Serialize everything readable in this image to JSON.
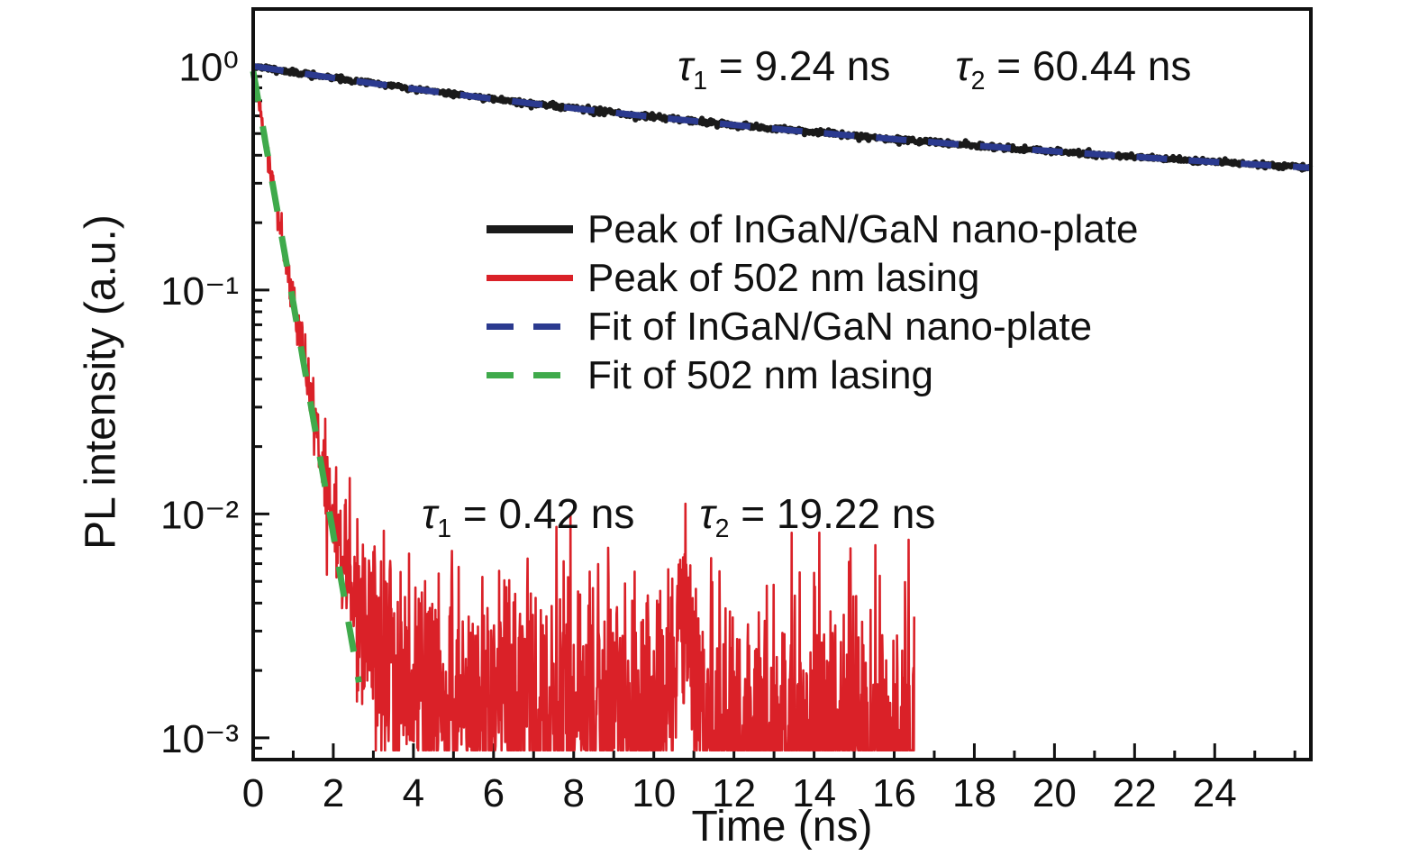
{
  "chart_data": {
    "type": "line",
    "title": "",
    "xlabel": "Time (ns)",
    "ylabel": "PL intensity (a.u.)",
    "x_axis": {
      "min": 0,
      "max": 26.4,
      "major_ticks": [
        0,
        2,
        4,
        6,
        8,
        10,
        12,
        14,
        16,
        18,
        20,
        22,
        24
      ],
      "minor_tick_step": 1
    },
    "y_axis": {
      "scale": "log",
      "min": 0.0008,
      "max": 1.8,
      "decades": [
        0,
        -1,
        -2,
        -3
      ],
      "decade_labels": [
        "10⁰",
        "10⁻¹",
        "10⁻²",
        "10⁻³"
      ]
    },
    "grid": false,
    "legend": {
      "position": "inside-center",
      "items": [
        {
          "label": "Peak of InGaN/GaN nano-plate",
          "color": "#1a1a1a",
          "dash": false,
          "thick": true
        },
        {
          "label": "Peak of 502 nm lasing",
          "color": "#da2128",
          "dash": false,
          "thick": false
        },
        {
          "label": "Fit of InGaN/GaN nano-plate",
          "color": "#2b3a8f",
          "dash": true,
          "thick": false
        },
        {
          "label": "Fit of 502 nm lasing",
          "color": "#3faa4b",
          "dash": true,
          "thick": false
        }
      ]
    },
    "annotations": [
      {
        "tau": "τ",
        "sub": "1",
        "rest": " = 9.24 ns"
      },
      {
        "tau": "τ",
        "sub": "2",
        "rest": " = 60.44 ns"
      },
      {
        "tau": "τ",
        "sub": "1",
        "rest": " = 0.42 ns"
      },
      {
        "tau": "τ",
        "sub": "2",
        "rest": " = 19.22 ns"
      }
    ],
    "time_constants": {
      "nano_plate": {
        "tau1_ns": 9.24,
        "tau2_ns": 60.44
      },
      "lasing_502nm": {
        "tau1_ns": 0.42,
        "tau2_ns": 19.22
      }
    },
    "series": [
      {
        "name": "Peak of InGaN/GaN nano-plate",
        "color": "#1a1a1a",
        "style": "solid",
        "width": 6,
        "model": {
          "kind": "biexp",
          "a1": 0.5,
          "tau1": 9.24,
          "a2": 0.5,
          "tau2": 60.44
        },
        "t_range": [
          0,
          26.4
        ],
        "dt": 0.02,
        "noise": {
          "base": 0.006,
          "scale": 0,
          "max": 0.02
        },
        "seed": 11,
        "sample_points": [
          [
            0,
            1.0
          ],
          [
            2,
            0.886
          ],
          [
            4,
            0.792
          ],
          [
            6,
            0.714
          ],
          [
            8,
            0.648
          ],
          [
            10,
            0.593
          ],
          [
            12,
            0.546
          ],
          [
            14,
            0.507
          ],
          [
            16,
            0.472
          ],
          [
            18,
            0.442
          ],
          [
            20,
            0.417
          ],
          [
            22,
            0.394
          ],
          [
            24,
            0.373
          ],
          [
            26,
            0.355
          ]
        ]
      },
      {
        "name": "Peak of 502 nm lasing",
        "color": "#da2128",
        "style": "solid",
        "width": 2.6,
        "model": {
          "kind": "biexp",
          "a1": 0.95,
          "tau1": 0.42,
          "a2": 0.002,
          "tau2": 19.22,
          "bump": {
            "center": 10.7,
            "sigma": 0.45,
            "amp": 0.0014
          }
        },
        "t_range": [
          0,
          16.5
        ],
        "dt": 0.01,
        "noise": {
          "base": 0.01,
          "scale": 0.011,
          "max": 0.4
        },
        "floor": 0.00088,
        "seed": 7,
        "sample_points": [
          [
            0,
            0.95
          ],
          [
            0.5,
            0.29
          ],
          [
            1,
            0.085
          ],
          [
            1.5,
            0.029
          ],
          [
            2,
            0.01
          ],
          [
            3,
            0.0025
          ],
          [
            4,
            0.0017
          ],
          [
            6,
            0.0015
          ],
          [
            8,
            0.0013
          ],
          [
            10.7,
            0.0026
          ],
          [
            12,
            0.0011
          ],
          [
            14,
            0.001
          ],
          [
            16,
            0.0009
          ]
        ]
      },
      {
        "name": "Fit of InGaN/GaN nano-plate",
        "color": "#2b3a8f",
        "style": "dashed",
        "width": 7,
        "dash": [
          34,
          24
        ],
        "model": {
          "kind": "biexp",
          "a1": 0.5,
          "tau1": 9.24,
          "a2": 0.5,
          "tau2": 60.44
        },
        "t_range": [
          0,
          26.4
        ],
        "dt": 0.1,
        "sample_points": [
          [
            0,
            1.0
          ],
          [
            4,
            0.792
          ],
          [
            8,
            0.648
          ],
          [
            12,
            0.546
          ],
          [
            16,
            0.472
          ],
          [
            20,
            0.417
          ],
          [
            24,
            0.373
          ],
          [
            26,
            0.355
          ]
        ]
      },
      {
        "name": "Fit of 502 nm lasing",
        "color": "#3faa4b",
        "style": "dashed",
        "width": 7,
        "dash": [
          34,
          28
        ],
        "model": {
          "kind": "exp",
          "a": 0.95,
          "tau": 0.42
        },
        "t_range": [
          0,
          2.65
        ],
        "dt": 0.02,
        "sample_points": [
          [
            0,
            0.95
          ],
          [
            0.5,
            0.29
          ],
          [
            1,
            0.087
          ],
          [
            1.5,
            0.027
          ],
          [
            2,
            0.0082
          ],
          [
            2.65,
            0.0017
          ]
        ]
      }
    ]
  }
}
